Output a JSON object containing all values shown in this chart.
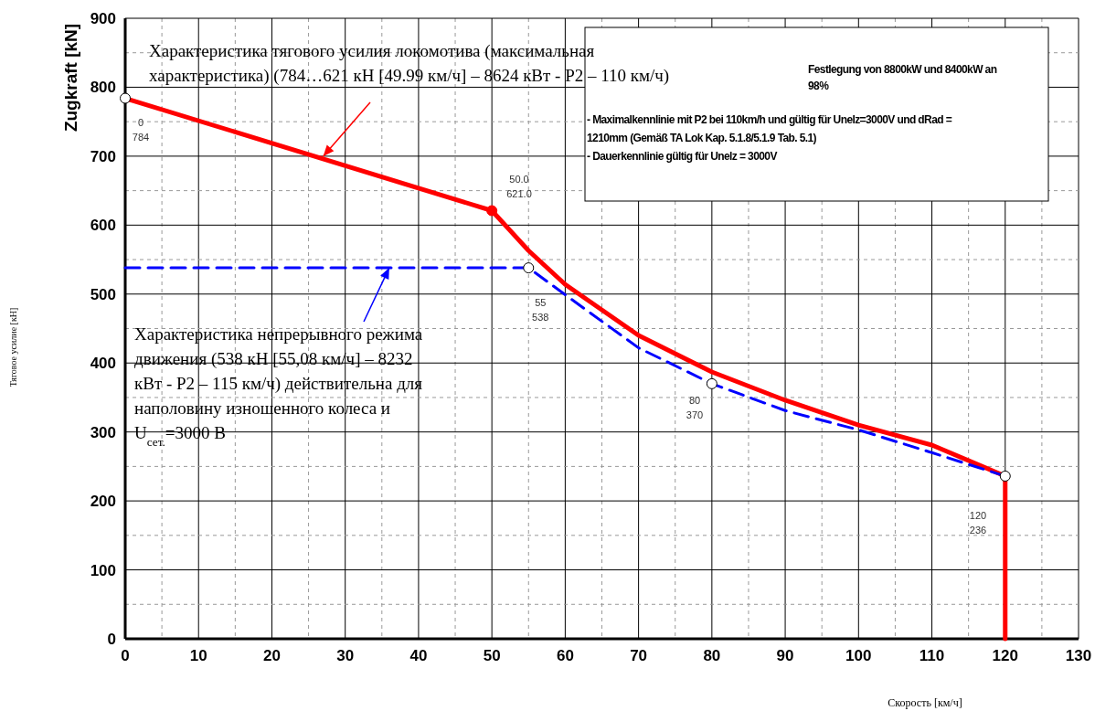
{
  "chart_data": {
    "type": "line",
    "xlabel": "Скорость [км/ч]",
    "ylabel": "Zugkraft [kN]",
    "xlim": [
      0,
      130
    ],
    "xticks": [
      0,
      {
        "value": 5,
        "label": null
      },
      10,
      {
        "value": 15,
        "label": null
      },
      20,
      {
        "value": 25,
        "label": null
      },
      30,
      {
        "value": 35,
        "label": null
      },
      40,
      {
        "value": 45,
        "label": null
      },
      50,
      {
        "value": 55,
        "label": null
      },
      60,
      {
        "value": 65,
        "label": null
      },
      70,
      {
        "value": 75,
        "label": null
      },
      80,
      {
        "value": 85,
        "label": null
      },
      90,
      {
        "value": 95,
        "label": null
      },
      100,
      {
        "value": 105,
        "label": null
      },
      110,
      {
        "value": 115,
        "label": null
      },
      120,
      {
        "value": 125,
        "label": null
      },
      130
    ],
    "ylim": [
      0,
      900
    ],
    "yticks": [
      0,
      {
        "value": 50,
        "label": null
      },
      100,
      {
        "value": 150,
        "label": null
      },
      200,
      {
        "value": 250,
        "label": null
      },
      300,
      {
        "value": 350,
        "label": null
      },
      400,
      {
        "value": 450,
        "label": null
      },
      500,
      {
        "value": 550,
        "label": null
      },
      600,
      {
        "value": 650,
        "label": null
      },
      700,
      {
        "value": 750,
        "label": null
      },
      800,
      {
        "value": 850,
        "label": null
      },
      900
    ],
    "grid": true,
    "series": [
      {
        "color": "#ff0000",
        "line_style": "solid",
        "x": [
          0,
          50,
          55,
          60,
          70,
          80,
          90,
          100,
          110,
          120,
          120
        ],
        "values": [
          784,
          621,
          563,
          514,
          440,
          387,
          346,
          310,
          281,
          236,
          0
        ]
      },
      {
        "color": "#0000ff",
        "line_style": "dashed",
        "x": [
          0,
          55,
          60,
          70,
          80,
          90,
          100,
          110,
          120
        ],
        "values": [
          538,
          538,
          499,
          422,
          370,
          331,
          303,
          270,
          236
        ]
      },
      {
        "type": "scatter",
        "color": "#000000",
        "marker": "circle",
        "x": [
          0,
          55,
          80,
          120
        ],
        "values": [
          784,
          538,
          370,
          236
        ]
      },
      {
        "type": "scatter",
        "color": "#ff0000",
        "marker": "circle",
        "x": [
          50
        ],
        "values": [
          621
        ]
      }
    ],
    "annotations": [
      {
        "text": "Характеристика тягового  усилия локомотива (максимальная\nхарактеристика) (784…621 кН [49.99 км/ч] – 8624 кВт - P2 – 110 км/ч)",
        "x": 27,
        "y": 700
      },
      {
        "text": "Характеристика непрерывного режима\nдвижения (538 кН [55,08 км/ч] – 8232\nкВт - P2 – 115 км/ч) действительна для\nнаполовину изношенного колеса и\nU$_{сет.}$=3000 В",
        "x": 36,
        "y": 538
      },
      "Festlegung von 8800kW und 8400kW an\n98%",
      "- Maximalkennlinie mit P2 bei 110km/h und gültig für Unelz=3000V und dRad =\n1210mm  (Gemäß TA Lok Kap. 5.1.8/5.1.9 Tab. 5.1)\n- Dauerkennlinie gültig für Unelz = 3000V",
      "Тяговое усилие [кН]",
      {
        "text": "0\n784",
        "x": 0,
        "y": 784
      },
      "50.0\n621.0",
      {
        "text": "55\n538",
        "x": 55,
        "y": 538
      },
      "80\n370",
      "120\n236"
    ]
  }
}
